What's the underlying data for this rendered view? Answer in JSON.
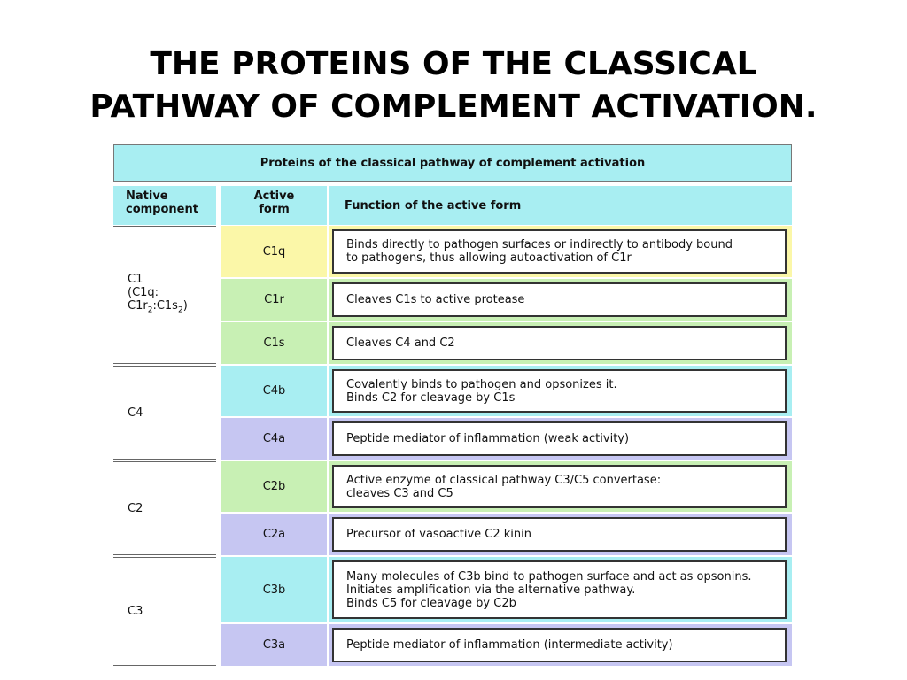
{
  "title": [
    "THE PROTEINS OF THE CLASSICAL",
    "PATHWAY OF COMPLEMENT ACTIVATION."
  ],
  "table": {
    "caption": "Proteins of the classical pathway of complement activation",
    "headers": [
      [
        "Native",
        "component"
      ],
      [
        "Active",
        "form"
      ],
      [
        "Function of the active form"
      ]
    ],
    "groups": [
      {
        "native": [
          [
            "C1"
          ],
          [
            "(C1q:"
          ],
          [
            " C1r",
            "2",
            ":C1s",
            "2",
            ")"
          ]
        ],
        "forms": [
          {
            "active": "C1q",
            "color": "#fbf7a8",
            "function": [
              "Binds directly to pathogen surfaces or indirectly to antibody bound",
              "to pathogens, thus allowing autoactivation of C1r"
            ]
          },
          {
            "active": "C1r",
            "color": "#c8f0b4",
            "function": [
              "Cleaves C1s to active protease"
            ]
          },
          {
            "active": "C1s",
            "color": "#c8f0b4",
            "function": [
              "Cleaves C4 and C2"
            ]
          }
        ]
      },
      {
        "native": [
          [
            "C4"
          ]
        ],
        "forms": [
          {
            "active": "C4b",
            "color": "#a8eef2",
            "function": [
              "Covalently binds to pathogen and opsonizes it.",
              "Binds C2 for cleavage by C1s"
            ]
          },
          {
            "active": "C4a",
            "color": "#c6c6f2",
            "function": [
              "Peptide mediator of inflammation (weak activity)"
            ]
          }
        ]
      },
      {
        "native": [
          [
            "C2"
          ]
        ],
        "forms": [
          {
            "active": "C2b",
            "color": "#c8f0b4",
            "function": [
              "Active enzyme of classical pathway C3/C5 convertase:",
              "cleaves C3 and C5"
            ]
          },
          {
            "active": "C2a",
            "color": "#c6c6f2",
            "function": [
              "Precursor of vasoactive C2 kinin"
            ]
          }
        ]
      },
      {
        "native": [
          [
            "C3"
          ]
        ],
        "forms": [
          {
            "active": "C3b",
            "color": "#a8eef2",
            "function": [
              "Many molecules of C3b bind to pathogen surface and act as opsonins.",
              "Initiates amplification via the alternative pathway.",
              "Binds C5 for cleavage by C2b"
            ]
          },
          {
            "active": "C3a",
            "color": "#c6c6f2",
            "function": [
              "Peptide mediator of inflammation (intermediate activity)"
            ]
          }
        ]
      }
    ]
  }
}
